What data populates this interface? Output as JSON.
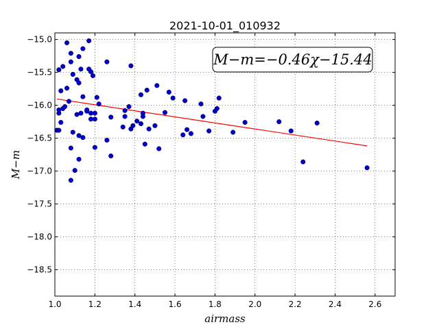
{
  "chart_data": {
    "type": "scatter",
    "title": "2021-10-01_010932",
    "xlabel": "airmass",
    "ylabel": "M−m",
    "xlim": [
      1.0,
      2.7
    ],
    "ylim": [
      -18.9,
      -14.9
    ],
    "y_inverted": true,
    "grid": true,
    "x_ticks": [
      "1.0",
      "1.2",
      "1.4",
      "1.6",
      "1.8",
      "2.0",
      "2.2",
      "2.4",
      "2.6"
    ],
    "y_ticks": [
      "−15.0",
      "−15.5",
      "−16.0",
      "−16.5",
      "−17.0",
      "−17.5",
      "−18.0",
      "−18.5"
    ],
    "annotation": "M−m=−0.46χ−15.44",
    "colors": {
      "points": "#0000cc",
      "fit_line": "#ff0000"
    },
    "fit": {
      "slope": -0.46,
      "intercept": -15.44,
      "x_range": [
        1.01,
        2.56
      ]
    },
    "points": [
      [
        1.01,
        -16.38
      ],
      [
        1.02,
        -16.38
      ],
      [
        1.02,
        -16.12
      ],
      [
        1.02,
        -16.07
      ],
      [
        1.02,
        -15.46
      ],
      [
        1.03,
        -15.78
      ],
      [
        1.03,
        -16.26
      ],
      [
        1.04,
        -16.05
      ],
      [
        1.04,
        -15.41
      ],
      [
        1.05,
        -16.02
      ],
      [
        1.06,
        -15.05
      ],
      [
        1.06,
        -15.74
      ],
      [
        1.07,
        -15.94
      ],
      [
        1.08,
        -15.21
      ],
      [
        1.08,
        -15.34
      ],
      [
        1.08,
        -16.65
      ],
      [
        1.08,
        -17.14
      ],
      [
        1.09,
        -15.53
      ],
      [
        1.09,
        -16.41
      ],
      [
        1.1,
        -16.99
      ],
      [
        1.11,
        -16.14
      ],
      [
        1.11,
        -15.61
      ],
      [
        1.12,
        -16.46
      ],
      [
        1.12,
        -16.82
      ],
      [
        1.12,
        -15.66
      ],
      [
        1.12,
        -15.26
      ],
      [
        1.13,
        -16.12
      ],
      [
        1.13,
        -15.45
      ],
      [
        1.14,
        -15.87
      ],
      [
        1.14,
        -15.14
      ],
      [
        1.14,
        -16.49
      ],
      [
        1.16,
        -16.09
      ],
      [
        1.16,
        -16.07
      ],
      [
        1.17,
        -15.02
      ],
      [
        1.17,
        -15.45
      ],
      [
        1.18,
        -16.12
      ],
      [
        1.18,
        -16.21
      ],
      [
        1.18,
        -15.49
      ],
      [
        1.19,
        -15.55
      ],
      [
        1.2,
        -16.12
      ],
      [
        1.2,
        -16.64
      ],
      [
        1.2,
        -16.21
      ],
      [
        1.21,
        -15.88
      ],
      [
        1.22,
        -15.98
      ],
      [
        1.26,
        -15.34
      ],
      [
        1.26,
        -16.53
      ],
      [
        1.28,
        -16.18
      ],
      [
        1.28,
        -16.77
      ],
      [
        1.34,
        -16.33
      ],
      [
        1.35,
        -16.08
      ],
      [
        1.35,
        -16.17
      ],
      [
        1.37,
        -16.02
      ],
      [
        1.38,
        -15.4
      ],
      [
        1.38,
        -16.36
      ],
      [
        1.39,
        -16.31
      ],
      [
        1.41,
        -16.24
      ],
      [
        1.43,
        -15.84
      ],
      [
        1.43,
        -16.28
      ],
      [
        1.44,
        -16.12
      ],
      [
        1.44,
        -16.17
      ],
      [
        1.45,
        -16.59
      ],
      [
        1.46,
        -15.77
      ],
      [
        1.47,
        -16.36
      ],
      [
        1.5,
        -16.31
      ],
      [
        1.51,
        -15.7
      ],
      [
        1.52,
        -16.66
      ],
      [
        1.55,
        -16.11
      ],
      [
        1.57,
        -15.8
      ],
      [
        1.59,
        -15.89
      ],
      [
        1.64,
        -16.45
      ],
      [
        1.65,
        -15.93
      ],
      [
        1.66,
        -16.37
      ],
      [
        1.68,
        -16.43
      ],
      [
        1.73,
        -15.98
      ],
      [
        1.74,
        -16.17
      ],
      [
        1.77,
        -16.39
      ],
      [
        1.8,
        -16.09
      ],
      [
        1.81,
        -16.05
      ],
      [
        1.82,
        -15.89
      ],
      [
        1.89,
        -16.41
      ],
      [
        1.95,
        -16.26
      ],
      [
        2.12,
        -16.25
      ],
      [
        2.18,
        -16.39
      ],
      [
        2.24,
        -16.86
      ],
      [
        2.31,
        -16.27
      ],
      [
        2.56,
        -16.95
      ]
    ]
  }
}
